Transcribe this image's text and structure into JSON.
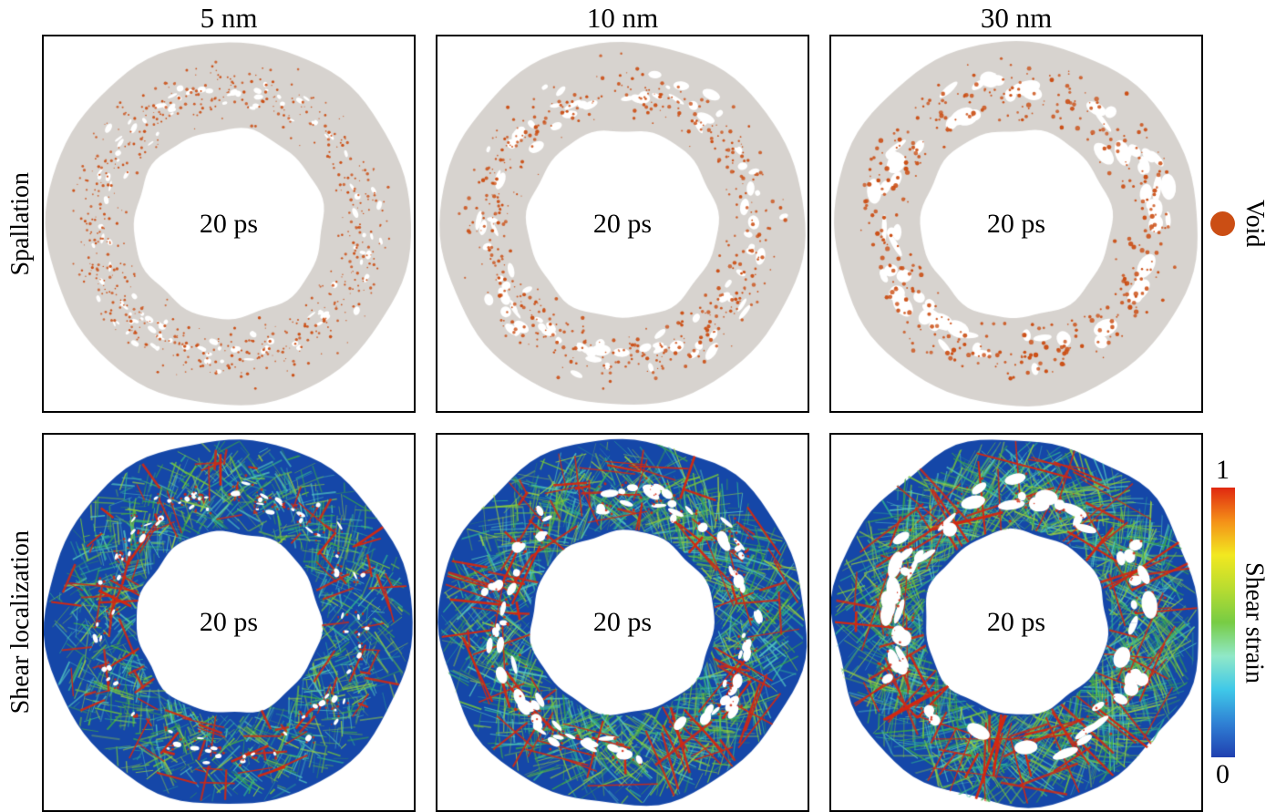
{
  "figure": {
    "columns": [
      {
        "label": "5 nm"
      },
      {
        "label": "10 nm"
      },
      {
        "label": "30 nm"
      }
    ],
    "rows": [
      {
        "label": "Spallation"
      },
      {
        "label": "Shear localization"
      }
    ],
    "time_label": "20 ps"
  },
  "legend": {
    "void": {
      "label": "Void",
      "color": "#cb4e14"
    },
    "colorbar": {
      "label": "Shear strain",
      "tick_top": "1",
      "tick_bottom": "0",
      "stops": [
        "#2040b0",
        "#2f80d4",
        "#3fc8e8",
        "#90e8c8",
        "#77cc44",
        "#b8dc30",
        "#f2e820",
        "#f49018",
        "#e02810"
      ]
    }
  },
  "panels": {
    "spallation": {
      "matrix_color": "#d7d3cf",
      "void_dot_color": "#cb4e14"
    },
    "shear": {
      "base_color": "#1547a8",
      "band_colors": [
        "#3aa54a",
        "#74c43c",
        "#2fae92",
        "#55c9c0",
        "#9ad13f"
      ],
      "hot_color": "#d42810",
      "void_color": "#ffffff"
    }
  }
}
